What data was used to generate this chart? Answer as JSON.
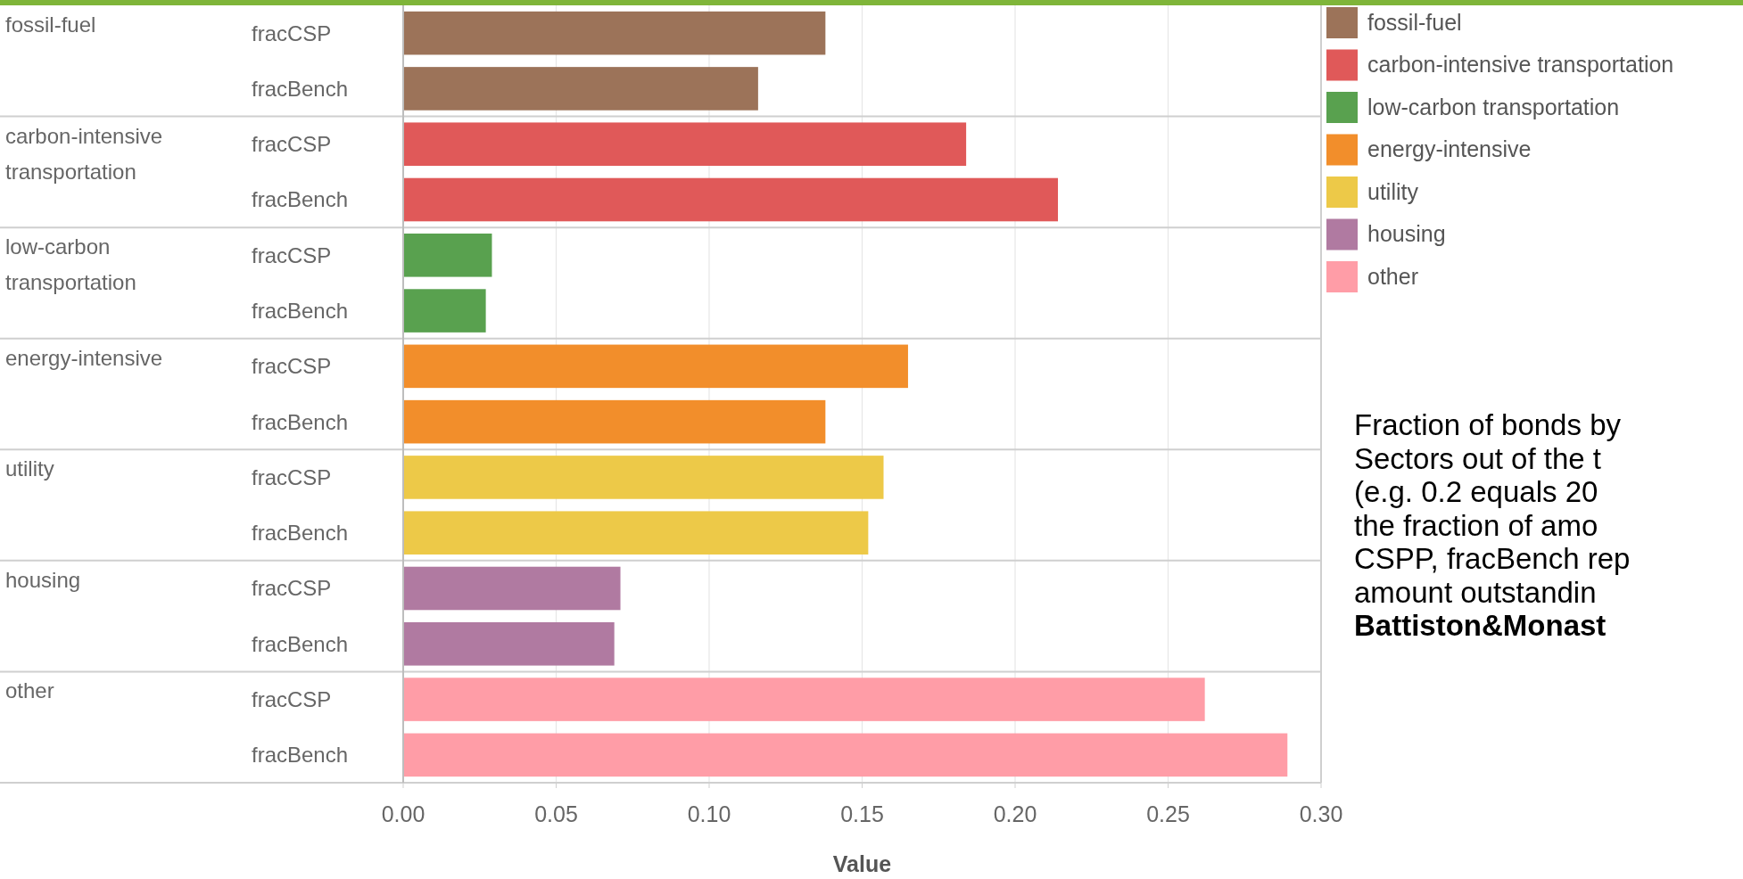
{
  "chart_data": {
    "type": "bar",
    "orientation": "horizontal",
    "xlabel": "Value",
    "categories": [
      "fracCSP",
      "fracBench",
      "fracCSP",
      "fracBench",
      "fracCSP",
      "fracBench",
      "fracCSP",
      "fracBench",
      "fracCSP",
      "fracBench",
      "fracCSP",
      "fracBench",
      "fracCSP",
      "fracBench"
    ],
    "series": [
      {
        "name": "fossil-fuel",
        "color": "#9c7359",
        "values": [
          0.138,
          0.116,
          null,
          null,
          null,
          null,
          null,
          null,
          null,
          null,
          null,
          null,
          null,
          null
        ]
      },
      {
        "name": "carbon-intensive transportation",
        "color": "#e05959",
        "values": [
          null,
          null,
          0.184,
          0.214,
          null,
          null,
          null,
          null,
          null,
          null,
          null,
          null,
          null,
          null
        ]
      },
      {
        "name": "low-carbon transportation",
        "color": "#59a14f",
        "values": [
          null,
          null,
          null,
          null,
          0.029,
          0.027,
          null,
          null,
          null,
          null,
          null,
          null,
          null,
          null
        ]
      },
      {
        "name": "energy-intensive",
        "color": "#f28e2b",
        "values": [
          null,
          null,
          null,
          null,
          null,
          null,
          0.165,
          0.138,
          null,
          null,
          null,
          null,
          null,
          null
        ]
      },
      {
        "name": "utility",
        "color": "#edc948",
        "values": [
          null,
          null,
          null,
          null,
          null,
          null,
          null,
          null,
          0.157,
          0.152,
          null,
          null,
          null,
          null
        ]
      },
      {
        "name": "housing",
        "color": "#b07aa1",
        "values": [
          null,
          null,
          null,
          null,
          null,
          null,
          null,
          null,
          null,
          null,
          0.071,
          0.069,
          null,
          null
        ]
      },
      {
        "name": "other",
        "color": "#ff9da7",
        "values": [
          null,
          null,
          null,
          null,
          null,
          null,
          null,
          null,
          null,
          null,
          null,
          null,
          0.262,
          0.289
        ]
      }
    ],
    "xlim": [
      0,
      0.3
    ],
    "xticks": [
      {
        "value": 0,
        "label": "0.00"
      },
      {
        "value": 0.05,
        "label": "0.05"
      },
      {
        "value": 0.1,
        "label": "0.10"
      },
      {
        "value": 0.15,
        "label": "0.15"
      },
      {
        "value": 0.2,
        "label": "0.20"
      },
      {
        "value": 0.25,
        "label": "0.25"
      },
      {
        "value": 0.3,
        "label": "0.30"
      }
    ],
    "grid": "x",
    "legend": "top right",
    "annotations": [
      "Fraction of bonds by",
      "Sectors out of the t",
      "(e.g. 0.2 equals 20",
      "the fraction of amo",
      "CSPP, fracBench rep",
      "amount outstandin",
      "Battiston&Monast"
    ]
  }
}
